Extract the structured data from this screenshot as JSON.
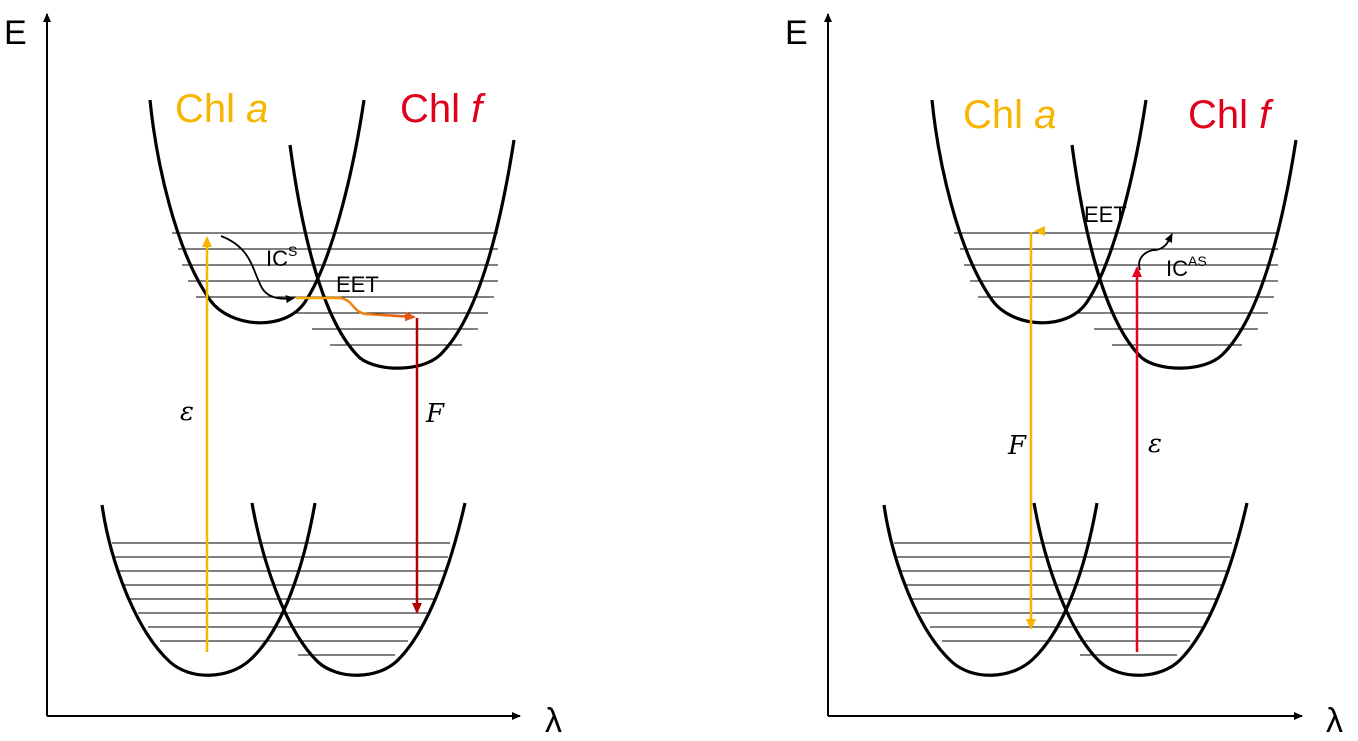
{
  "colors": {
    "chl_a": "#f7b500",
    "chl_f": "#e0001b",
    "eet_gradient_start": "#f7b500",
    "eet_gradient_end": "#e8541a",
    "fluorescence_red": "#b40000",
    "excitation_red": "#e8001c",
    "axis": "#000000"
  },
  "panels": [
    {
      "energy_label": "E",
      "wavelength_label": "λ",
      "chl_a": {
        "name": "Chl",
        "suffix": "a"
      },
      "chl_f": {
        "name": "Chl",
        "suffix": "f"
      },
      "ic_label": "IC",
      "ic_superscript": "S",
      "eet_label": "EET",
      "excitation_symbol": "ε",
      "fluorescence_symbol": "F"
    },
    {
      "energy_label": "E",
      "wavelength_label": "λ",
      "chl_a": {
        "name": "Chl",
        "suffix": "a"
      },
      "chl_f": {
        "name": "Chl",
        "suffix": "f"
      },
      "ic_label": "IC",
      "ic_superscript": "AS",
      "eet_label": "EET",
      "excitation_symbol": "ε",
      "fluorescence_symbol": "F"
    }
  ]
}
